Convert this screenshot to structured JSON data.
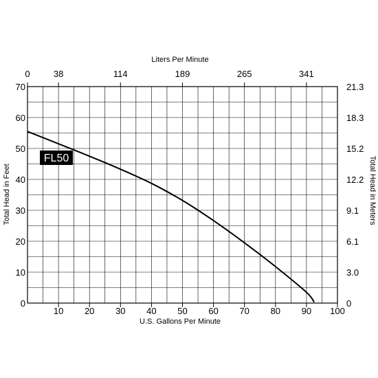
{
  "chart_data": {
    "type": "line",
    "xlabel": "U.S. Gallons Per Minute",
    "ylabel": "Total Head in Feet",
    "x2label": "Liters Per Minute",
    "y2label": "Total Head in Meters",
    "xlim": [
      0,
      100
    ],
    "ylim": [
      0,
      70
    ],
    "grid": true,
    "x_ticks": [
      {
        "v": 10,
        "label": "10"
      },
      {
        "v": 20,
        "label": "20"
      },
      {
        "v": 30,
        "label": "30"
      },
      {
        "v": 40,
        "label": "40"
      },
      {
        "v": 50,
        "label": "50"
      },
      {
        "v": 60,
        "label": "60"
      },
      {
        "v": 70,
        "label": "70"
      },
      {
        "v": 80,
        "label": "80"
      },
      {
        "v": 90,
        "label": "90"
      },
      {
        "v": 100,
        "label": "100"
      }
    ],
    "x2_ticks": [
      {
        "v": 0,
        "label": "0"
      },
      {
        "v": 10,
        "label": "38"
      },
      {
        "v": 30,
        "label": "114"
      },
      {
        "v": 50,
        "label": "189"
      },
      {
        "v": 70,
        "label": "265"
      },
      {
        "v": 90,
        "label": "341"
      }
    ],
    "y_ticks": [
      {
        "v": 0,
        "label": "0"
      },
      {
        "v": 10,
        "label": "10"
      },
      {
        "v": 20,
        "label": "20"
      },
      {
        "v": 30,
        "label": "30"
      },
      {
        "v": 40,
        "label": "40"
      },
      {
        "v": 50,
        "label": "50"
      },
      {
        "v": 60,
        "label": "60"
      },
      {
        "v": 70,
        "label": "70"
      }
    ],
    "y2_ticks": [
      {
        "v": 0,
        "label": "0"
      },
      {
        "v": 10,
        "label": "3.0"
      },
      {
        "v": 20,
        "label": "6.1"
      },
      {
        "v": 30,
        "label": "9.1"
      },
      {
        "v": 40,
        "label": "12.2"
      },
      {
        "v": 50,
        "label": "15.2"
      },
      {
        "v": 60,
        "label": "18.3"
      },
      {
        "v": 70,
        "label": "21.3"
      }
    ],
    "series": [
      {
        "name": "FL50",
        "x": [
          0,
          10,
          20,
          30,
          40,
          50,
          60,
          70,
          80,
          90,
          92.5
        ],
        "y": [
          55.5,
          51.5,
          47.5,
          43.3,
          38.7,
          33.2,
          26.7,
          19.5,
          11.8,
          3.5,
          0.3
        ]
      }
    ]
  }
}
